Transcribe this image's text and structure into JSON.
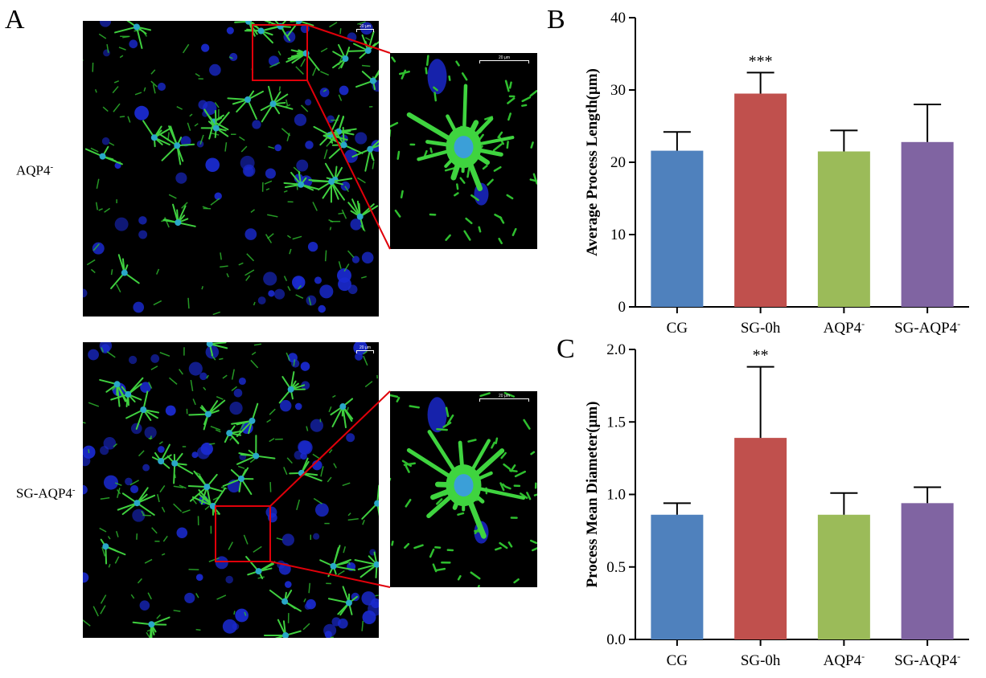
{
  "panel_labels": {
    "a": "A",
    "b": "B",
    "c": "C"
  },
  "rows": [
    {
      "label_main": "AQP4",
      "label_sup": "-"
    },
    {
      "label_main": "SG-AQP4",
      "label_sup": "-"
    }
  ],
  "scale_bar_text": "20 μm",
  "colors": {
    "cg": "#4f81bd",
    "sg0h": "#c0504d",
    "aqp4": "#9bbb59",
    "sgaqp4": "#8064a2",
    "inset_box": "#e0000a"
  },
  "chart_data": [
    {
      "type": "bar",
      "panel": "B",
      "categories": [
        "CG",
        "SG-0h",
        "AQP4",
        "SG-AQP4"
      ],
      "category_sup": [
        "",
        "",
        "-",
        "-"
      ],
      "values": [
        21.6,
        29.5,
        21.5,
        22.8
      ],
      "errors": [
        2.6,
        2.9,
        2.9,
        5.2
      ],
      "significance": [
        "",
        "***",
        "",
        ""
      ],
      "ylabel": "Average Process Length(μm)",
      "xlabel": "",
      "ylim": [
        0,
        40
      ],
      "yticks": [
        0,
        10,
        20,
        30,
        40
      ],
      "ytick_labels": [
        "0",
        "10",
        "20",
        "30",
        "40"
      ]
    },
    {
      "type": "bar",
      "panel": "C",
      "categories": [
        "CG",
        "SG-0h",
        "AQP4",
        "SG-AQP4"
      ],
      "category_sup": [
        "",
        "",
        "-",
        "-"
      ],
      "values": [
        0.86,
        1.39,
        0.86,
        0.94
      ],
      "errors": [
        0.08,
        0.49,
        0.15,
        0.11
      ],
      "significance": [
        "",
        "**",
        "",
        ""
      ],
      "ylabel": "Process Mean Diameter(μm)",
      "xlabel": "",
      "ylim": [
        0,
        2.0
      ],
      "yticks": [
        0,
        0.5,
        1.0,
        1.5,
        2.0
      ],
      "ytick_labels": [
        "0.0",
        "0.5",
        "1.0",
        "1.5",
        "2.0"
      ]
    }
  ]
}
